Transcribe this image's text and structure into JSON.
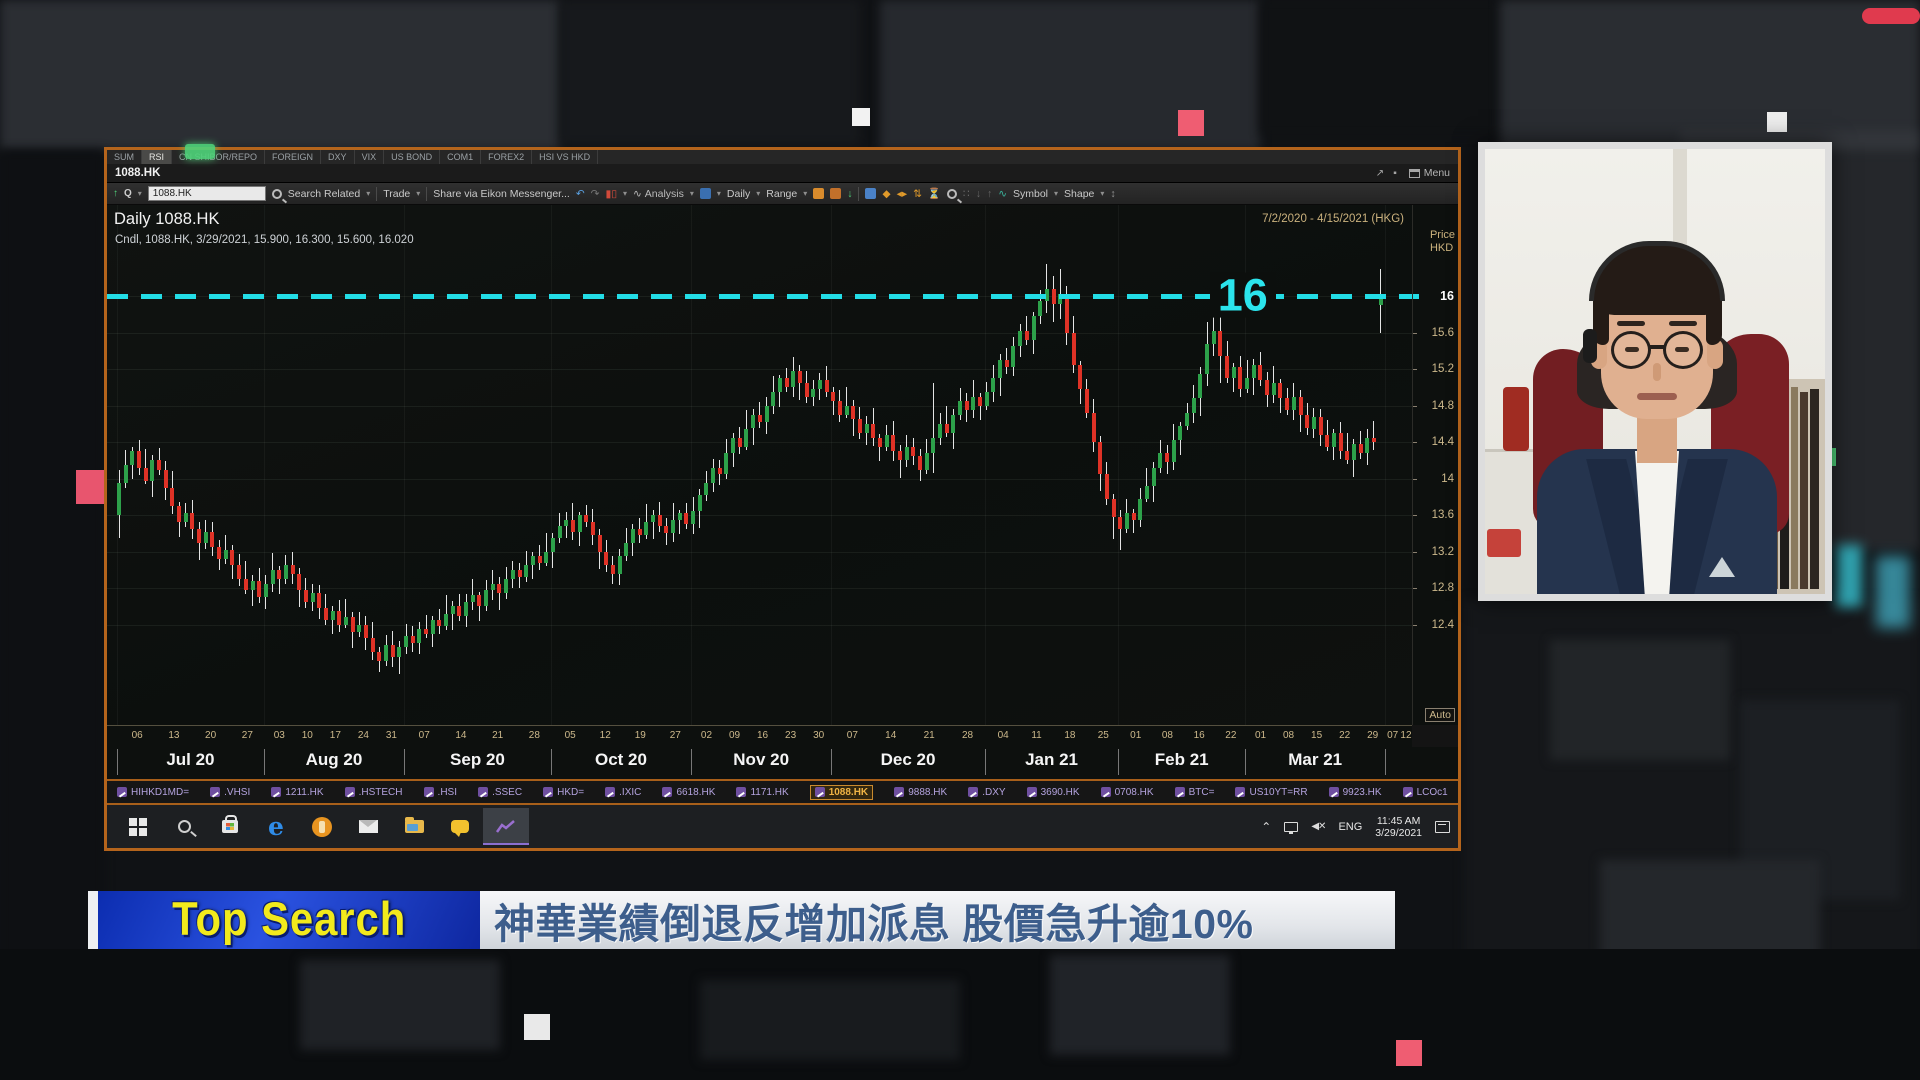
{
  "window": {
    "tabs": [
      "SUM",
      "RSI",
      "CN SHIBOR/REPO",
      "FOREIGN",
      "DXY",
      "VIX",
      "US BOND",
      "COM1",
      "FOREX2",
      "HSI VS HKD"
    ],
    "active_tab": "RSI",
    "title": "1088.HK",
    "menu_label": "Menu",
    "toolbar": {
      "symbol_input": "1088.HK",
      "search_related": "Search Related",
      "trade": "Trade",
      "share": "Share via Eikon Messenger...",
      "analysis": "Analysis",
      "interval": "Daily",
      "range": "Range",
      "symbol": "Symbol",
      "shape": "Shape"
    },
    "chart_title": "Daily 1088.HK",
    "period": "7/2/2020 - 4/15/2021 (HKG)",
    "price_label_line1": "Price",
    "price_label_line2": "HKD",
    "legend": "Cndl, 1088.HK, 3/29/2021, 15.900, 16.300, 15.600, 16.020",
    "auto_label": "Auto",
    "ticker": {
      "items": [
        "HIHKD1MD=",
        ".VHSI",
        "1211.HK",
        ".HSTECH",
        ".HSI",
        ".SSEC",
        "HKD=",
        ".IXIC",
        "6618.HK",
        "1171.HK",
        "1088.HK",
        "9888.HK",
        ".DXY",
        "3690.HK",
        "0708.HK",
        "BTC=",
        "US10YT=RR",
        "9923.HK",
        "LCOc1"
      ],
      "active": "1088.HK"
    }
  },
  "chart_data": {
    "type": "candlestick",
    "symbol": "1088.HK",
    "interval": "Daily",
    "title": "Daily 1088.HK",
    "period": "7/2/2020 - 4/15/2021 (HKG)",
    "ylabel": "Price HKD",
    "last_bar": {
      "date": "3/29/2021",
      "open": 15.9,
      "high": 16.3,
      "low": 15.6,
      "close": 16.02
    },
    "threshold": {
      "value": 16,
      "label": "16"
    },
    "y_ticks": [
      16,
      15.6,
      15.2,
      14.8,
      14.4,
      14,
      13.6,
      13.2,
      12.8,
      12.4
    ],
    "y_max": 17.0,
    "y_min": 11.3,
    "months": [
      {
        "label": "Jul 20",
        "days": [
          "06",
          "13",
          "20",
          "27"
        ],
        "count": 22
      },
      {
        "label": "Aug 20",
        "days": [
          "03",
          "10",
          "17",
          "24",
          "31"
        ],
        "count": 21
      },
      {
        "label": "Sep 20",
        "days": [
          "07",
          "14",
          "21",
          "28"
        ],
        "count": 22
      },
      {
        "label": "Oct 20",
        "days": [
          "05",
          "12",
          "19",
          "27"
        ],
        "count": 21
      },
      {
        "label": "Nov 20",
        "days": [
          "02",
          "09",
          "16",
          "23",
          "30"
        ],
        "count": 21
      },
      {
        "label": "Dec 20",
        "days": [
          "07",
          "14",
          "21",
          "28"
        ],
        "count": 23
      },
      {
        "label": "Jan 21",
        "days": [
          "04",
          "11",
          "18",
          "25"
        ],
        "count": 20
      },
      {
        "label": "Feb 21",
        "days": [
          "01",
          "08",
          "16",
          "22"
        ],
        "count": 19
      },
      {
        "label": "Mar 21",
        "days": [
          "01",
          "08",
          "15",
          "22",
          "29"
        ],
        "count": 21
      },
      {
        "label": "",
        "days": [
          "07",
          "12"
        ],
        "count": 4
      }
    ],
    "closes": [
      13.95,
      14.15,
      14.3,
      14.12,
      13.98,
      14.2,
      14.1,
      13.9,
      13.7,
      13.52,
      13.62,
      13.45,
      13.3,
      13.42,
      13.25,
      13.12,
      13.22,
      13.05,
      12.9,
      12.78,
      12.88,
      12.7,
      12.85,
      13.0,
      12.9,
      13.05,
      12.95,
      12.78,
      12.65,
      12.75,
      12.58,
      12.45,
      12.55,
      12.4,
      12.48,
      12.32,
      12.4,
      12.25,
      12.1,
      12.0,
      12.18,
      12.05,
      12.15,
      12.28,
      12.2,
      12.35,
      12.3,
      12.45,
      12.38,
      12.52,
      12.6,
      12.5,
      12.65,
      12.72,
      12.6,
      12.78,
      12.85,
      12.75,
      12.9,
      13.0,
      12.92,
      13.05,
      13.15,
      13.08,
      13.2,
      13.35,
      13.48,
      13.55,
      13.42,
      13.6,
      13.52,
      13.38,
      13.2,
      13.05,
      12.95,
      13.15,
      13.3,
      13.45,
      13.38,
      13.52,
      13.6,
      13.48,
      13.4,
      13.55,
      13.62,
      13.5,
      13.65,
      13.82,
      13.95,
      14.12,
      14.05,
      14.28,
      14.45,
      14.35,
      14.55,
      14.7,
      14.62,
      14.8,
      14.95,
      15.1,
      15.0,
      15.18,
      15.05,
      14.9,
      14.98,
      15.08,
      14.95,
      14.85,
      14.7,
      14.8,
      14.65,
      14.5,
      14.6,
      14.45,
      14.35,
      14.48,
      14.3,
      14.2,
      14.35,
      14.25,
      14.1,
      14.28,
      14.45,
      14.6,
      14.5,
      14.7,
      14.85,
      14.75,
      14.9,
      14.8,
      14.95,
      15.1,
      15.3,
      15.22,
      15.45,
      15.62,
      15.52,
      15.78,
      15.95,
      16.08,
      15.92,
      16.02,
      15.6,
      15.25,
      14.98,
      14.72,
      14.4,
      14.05,
      13.78,
      13.58,
      13.45,
      13.62,
      13.55,
      13.78,
      13.92,
      14.12,
      14.28,
      14.18,
      14.42,
      14.58,
      14.72,
      14.88,
      15.15,
      15.48,
      15.62,
      15.35,
      15.1,
      15.22,
      14.98,
      15.1,
      15.25,
      15.08,
      14.92,
      15.05,
      14.88,
      14.75,
      14.9,
      14.7,
      14.55,
      14.68,
      14.48,
      14.35,
      14.5,
      14.3,
      14.2,
      14.38,
      14.28,
      14.45,
      14.4,
      16.02
    ],
    "wick_hi": [
      0.08,
      0.16,
      0.05,
      0.12,
      0.2,
      0.06,
      0.14,
      0.09,
      0.18,
      0.04,
      0.11,
      0.15,
      0.07,
      0.13,
      0.1
    ],
    "wick_lo": [
      0.12,
      0.05,
      0.15,
      0.08,
      0.04,
      0.18,
      0.06,
      0.13,
      0.09,
      0.16,
      0.05,
      0.11,
      0.19,
      0.07,
      0.1
    ],
    "overrides": {
      "0": [
        13.6,
        14.1,
        13.35,
        13.95
      ],
      "39": [
        12.1,
        12.16,
        11.88,
        12.0
      ],
      "122": [
        14.28,
        15.05,
        14.06,
        14.45
      ],
      "139": [
        15.95,
        16.35,
        15.82,
        16.08
      ],
      "140": [
        16.08,
        16.22,
        15.72,
        15.92
      ],
      "141": [
        15.92,
        16.3,
        15.75,
        16.02
      ],
      "149": [
        13.78,
        13.83,
        13.34,
        13.58
      ],
      "150": [
        13.58,
        13.66,
        13.22,
        13.45
      ],
      "163": [
        15.15,
        15.72,
        15.02,
        15.48
      ],
      "164": [
        15.48,
        15.98,
        15.35,
        15.62
      ],
      "165": [
        15.62,
        15.78,
        15.05,
        15.35
      ],
      "189": [
        15.9,
        16.3,
        15.6,
        16.02
      ]
    }
  },
  "taskbar": {
    "language": "ENG",
    "time": "11:45 AM",
    "date": "3/29/2021"
  },
  "banner": {
    "brand": "Top Search",
    "headline": "神華業績倒退反增加派息 股價急升逾10%"
  },
  "colors": {
    "window_border": "#b4641c",
    "threshold_cyan": "#23dde6",
    "candle_up": "#2da14a",
    "candle_down": "#df3226",
    "axis_tan": "#cdb98c",
    "ticker_purple": "#b4a3df",
    "ticker_active": "#f0b445",
    "banner_blue": "#1b3fd0",
    "banner_yellow": "#f2ea1c",
    "headline_blue": "#3d5e8c"
  }
}
